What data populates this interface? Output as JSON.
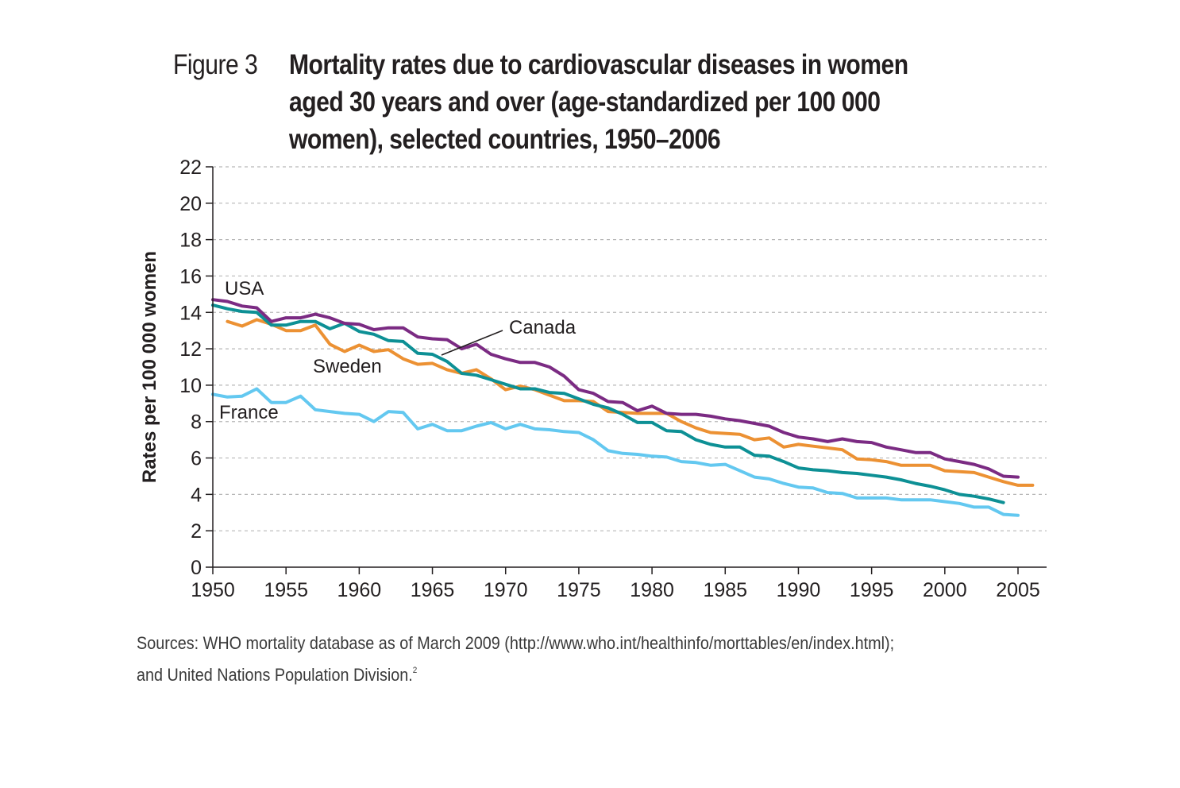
{
  "figure": {
    "label": "Figure 3",
    "title_lines": [
      "Mortality rates due to cardiovascular diseases in women",
      "aged 30 years and over (age-standardized per 100 000",
      "women), selected countries, 1950–2006"
    ],
    "sources_line1": "Sources: WHO mortality database as of March 2009 (http://www.who.int/healthinfo/morttables/en/index.html);",
    "sources_line2": "and United Nations Population Division.",
    "sources_sup": "2"
  },
  "chart_data": {
    "type": "line",
    "title": "Mortality rates due to cardiovascular diseases in women aged 30 years and over (age-standardized per 100 000 women), selected countries, 1950–2006",
    "xlabel": "",
    "ylabel": "Rates per 100 000 women",
    "xlim": [
      1950,
      2007
    ],
    "ylim": [
      0,
      22
    ],
    "xticks": [
      1950,
      1955,
      1960,
      1965,
      1970,
      1975,
      1980,
      1985,
      1990,
      1995,
      2000,
      2005
    ],
    "yticks": [
      0,
      2,
      4,
      6,
      8,
      10,
      12,
      14,
      16,
      18,
      20,
      22
    ],
    "grid": "horizontal dashed",
    "legend": "inline labels",
    "series": [
      {
        "name": "USA",
        "color": "#7b2b83",
        "x": [
          1950,
          1951,
          1952,
          1953,
          1954,
          1955,
          1956,
          1957,
          1958,
          1959,
          1960,
          1961,
          1962,
          1963,
          1964,
          1965,
          1966,
          1967,
          1968,
          1969,
          1970,
          1971,
          1972,
          1973,
          1974,
          1975,
          1976,
          1977,
          1978,
          1979,
          1980,
          1981,
          1982,
          1983,
          1984,
          1985,
          1986,
          1987,
          1988,
          1989,
          1990,
          1991,
          1992,
          1993,
          1994,
          1995,
          1996,
          1997,
          1998,
          1999,
          2000,
          2001,
          2002,
          2003,
          2004,
          2005
        ],
        "y": [
          14.7,
          14.6,
          14.35,
          14.25,
          13.5,
          13.7,
          13.7,
          13.9,
          13.7,
          13.4,
          13.35,
          13.05,
          13.15,
          13.15,
          12.65,
          12.55,
          12.5,
          12.0,
          12.25,
          11.7,
          11.45,
          11.25,
          11.25,
          11.0,
          10.5,
          9.75,
          9.55,
          9.1,
          9.05,
          8.6,
          8.85,
          8.45,
          8.4,
          8.4,
          8.3,
          8.15,
          8.05,
          7.9,
          7.75,
          7.4,
          7.15,
          7.05,
          6.9,
          7.05,
          6.9,
          6.85,
          6.6,
          6.45,
          6.3,
          6.3,
          5.95,
          5.8,
          5.65,
          5.4,
          5.0,
          4.95
        ]
      },
      {
        "name": "Canada",
        "color": "#0d9095",
        "x": [
          1950,
          1951,
          1952,
          1953,
          1954,
          1955,
          1956,
          1957,
          1958,
          1959,
          1960,
          1961,
          1962,
          1963,
          1964,
          1965,
          1966,
          1967,
          1968,
          1969,
          1970,
          1971,
          1972,
          1973,
          1974,
          1975,
          1976,
          1977,
          1978,
          1979,
          1980,
          1981,
          1982,
          1983,
          1984,
          1985,
          1986,
          1987,
          1988,
          1989,
          1990,
          1991,
          1992,
          1993,
          1994,
          1995,
          1996,
          1997,
          1998,
          1999,
          2000,
          2001,
          2002,
          2003,
          2004
        ],
        "y": [
          14.4,
          14.2,
          14.05,
          14.0,
          13.3,
          13.3,
          13.5,
          13.5,
          13.1,
          13.4,
          12.95,
          12.8,
          12.45,
          12.4,
          11.75,
          11.7,
          11.3,
          10.65,
          10.55,
          10.3,
          10.05,
          9.8,
          9.8,
          9.6,
          9.55,
          9.25,
          8.95,
          8.75,
          8.4,
          7.95,
          7.95,
          7.5,
          7.45,
          7.0,
          6.75,
          6.6,
          6.6,
          6.15,
          6.1,
          5.8,
          5.45,
          5.35,
          5.3,
          5.2,
          5.15,
          5.05,
          4.95,
          4.8,
          4.6,
          4.45,
          4.25,
          4.0,
          3.9,
          3.75,
          3.55
        ]
      },
      {
        "name": "Sweden",
        "color": "#ec9133",
        "x": [
          1951,
          1952,
          1953,
          1954,
          1955,
          1956,
          1957,
          1958,
          1959,
          1960,
          1961,
          1962,
          1963,
          1964,
          1965,
          1966,
          1967,
          1968,
          1969,
          1970,
          1971,
          1972,
          1973,
          1974,
          1975,
          1976,
          1977,
          1978,
          1979,
          1980,
          1981,
          1982,
          1983,
          1984,
          1985,
          1986,
          1987,
          1988,
          1989,
          1990,
          1991,
          1992,
          1993,
          1994,
          1995,
          1996,
          1997,
          1998,
          1999,
          2000,
          2001,
          2002,
          2003,
          2004,
          2005,
          2006
        ],
        "y": [
          13.5,
          13.25,
          13.6,
          13.35,
          13.0,
          13.0,
          13.3,
          12.25,
          11.85,
          12.2,
          11.85,
          11.95,
          11.45,
          11.15,
          11.2,
          10.85,
          10.65,
          10.85,
          10.35,
          9.75,
          9.95,
          9.75,
          9.45,
          9.15,
          9.15,
          9.1,
          8.55,
          8.5,
          8.45,
          8.45,
          8.45,
          8.0,
          7.65,
          7.4,
          7.35,
          7.3,
          7.0,
          7.1,
          6.6,
          6.75,
          6.65,
          6.55,
          6.45,
          5.95,
          5.9,
          5.8,
          5.6,
          5.6,
          5.6,
          5.3,
          5.25,
          5.2,
          4.95,
          4.7,
          4.5,
          4.5
        ]
      },
      {
        "name": "France",
        "color": "#63c8f0",
        "x": [
          1950,
          1951,
          1952,
          1953,
          1954,
          1955,
          1956,
          1957,
          1958,
          1959,
          1960,
          1961,
          1962,
          1963,
          1964,
          1965,
          1966,
          1967,
          1968,
          1969,
          1970,
          1971,
          1972,
          1973,
          1974,
          1975,
          1976,
          1977,
          1978,
          1979,
          1980,
          1981,
          1982,
          1983,
          1984,
          1985,
          1986,
          1987,
          1988,
          1989,
          1990,
          1991,
          1992,
          1993,
          1994,
          1995,
          1996,
          1997,
          1998,
          1999,
          2000,
          2001,
          2002,
          2003,
          2004,
          2005
        ],
        "y": [
          9.5,
          9.35,
          9.4,
          9.8,
          9.05,
          9.05,
          9.4,
          8.65,
          8.55,
          8.45,
          8.4,
          8.0,
          8.55,
          8.5,
          7.6,
          7.85,
          7.5,
          7.5,
          7.75,
          7.95,
          7.6,
          7.85,
          7.6,
          7.55,
          7.45,
          7.4,
          7.0,
          6.4,
          6.25,
          6.2,
          6.1,
          6.05,
          5.8,
          5.75,
          5.6,
          5.65,
          5.3,
          4.95,
          4.85,
          4.6,
          4.4,
          4.35,
          4.1,
          4.05,
          3.8,
          3.8,
          3.8,
          3.7,
          3.7,
          3.7,
          3.6,
          3.5,
          3.3,
          3.3,
          2.9,
          2.85
        ]
      }
    ]
  }
}
